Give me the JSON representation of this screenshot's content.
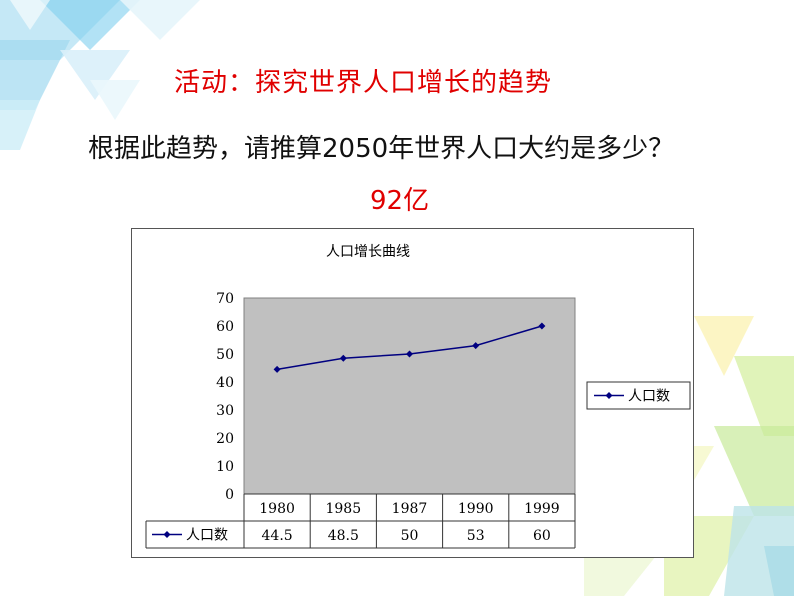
{
  "heading": "活动：探究世界人口增长的趋势",
  "question": "根据此趋势，请推算2050年世界人口大约是多少？",
  "answer": "92亿",
  "colors": {
    "heading": "#e00000",
    "answer": "#e00000",
    "series": "#000080",
    "plot_area": "#c0c0c0"
  },
  "chart_data": {
    "type": "line",
    "title": "人口增长曲线",
    "categories": [
      "1980",
      "1985",
      "1987",
      "1990",
      "1999"
    ],
    "series": [
      {
        "name": "人口数",
        "values": [
          44.5,
          48.5,
          50,
          53,
          60
        ],
        "value_labels": [
          "44.5",
          "48.5",
          "50",
          "53",
          "60"
        ],
        "color": "#000080",
        "marker": "diamond"
      }
    ],
    "ylim": [
      0,
      70
    ],
    "yticks": [
      "0",
      "10",
      "20",
      "30",
      "40",
      "50",
      "60",
      "70"
    ],
    "grid": false,
    "legend": "right",
    "data_table": true
  }
}
